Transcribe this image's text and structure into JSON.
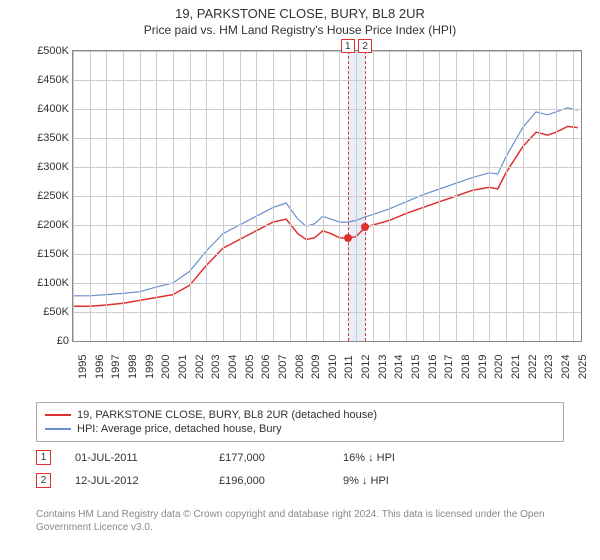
{
  "title": "19, PARKSTONE CLOSE, BURY, BL8 2UR",
  "subtitle": "Price paid vs. HM Land Registry's House Price Index (HPI)",
  "chart": {
    "type": "line",
    "background_color": "#ffffff",
    "grid_color": "#cccccc",
    "border_color": "#888888",
    "y": {
      "min": 0,
      "max": 500000,
      "step": 50000,
      "ticks": [
        "£0",
        "£50K",
        "£100K",
        "£150K",
        "£200K",
        "£250K",
        "£300K",
        "£350K",
        "£400K",
        "£450K",
        "£500K"
      ],
      "label_fontsize": 11
    },
    "x": {
      "min": 1995,
      "max": 2025.5,
      "ticks": [
        1995,
        1996,
        1997,
        1998,
        1999,
        2000,
        2001,
        2002,
        2003,
        2004,
        2005,
        2006,
        2007,
        2008,
        2009,
        2010,
        2011,
        2012,
        2013,
        2014,
        2015,
        2016,
        2017,
        2018,
        2019,
        2020,
        2021,
        2022,
        2023,
        2024,
        2025
      ],
      "label_fontsize": 11,
      "label_rotation": -90
    },
    "series": [
      {
        "name": "19, PARKSTONE CLOSE, BURY, BL8 2UR (detached house)",
        "color": "#e03030",
        "line_width": 1.5,
        "points": [
          [
            1995,
            60000
          ],
          [
            1996,
            60000
          ],
          [
            1997,
            62000
          ],
          [
            1998,
            65000
          ],
          [
            1999,
            70000
          ],
          [
            2000,
            75000
          ],
          [
            2001,
            80000
          ],
          [
            2002,
            96000
          ],
          [
            2003,
            130000
          ],
          [
            2004,
            160000
          ],
          [
            2005,
            175000
          ],
          [
            2006,
            190000
          ],
          [
            2007,
            205000
          ],
          [
            2007.8,
            210000
          ],
          [
            2008.5,
            185000
          ],
          [
            2009,
            175000
          ],
          [
            2009.5,
            178000
          ],
          [
            2010,
            190000
          ],
          [
            2010.5,
            185000
          ],
          [
            2011,
            178000
          ],
          [
            2011.5,
            177000
          ],
          [
            2012,
            180000
          ],
          [
            2012.54,
            196000
          ],
          [
            2013,
            200000
          ],
          [
            2014,
            208000
          ],
          [
            2015,
            220000
          ],
          [
            2016,
            230000
          ],
          [
            2017,
            240000
          ],
          [
            2018,
            250000
          ],
          [
            2019,
            260000
          ],
          [
            2020,
            265000
          ],
          [
            2020.5,
            262000
          ],
          [
            2021,
            290000
          ],
          [
            2022,
            335000
          ],
          [
            2022.8,
            360000
          ],
          [
            2023.5,
            355000
          ],
          [
            2024,
            360000
          ],
          [
            2024.7,
            370000
          ],
          [
            2025.3,
            368000
          ]
        ]
      },
      {
        "name": "HPI: Average price, detached house, Bury",
        "color": "#6a8fd0",
        "line_width": 1.2,
        "points": [
          [
            1995,
            78000
          ],
          [
            1996,
            78000
          ],
          [
            1997,
            80000
          ],
          [
            1998,
            82000
          ],
          [
            1999,
            85000
          ],
          [
            2000,
            93000
          ],
          [
            2001,
            100000
          ],
          [
            2002,
            120000
          ],
          [
            2003,
            155000
          ],
          [
            2004,
            185000
          ],
          [
            2005,
            200000
          ],
          [
            2006,
            215000
          ],
          [
            2007,
            230000
          ],
          [
            2007.8,
            238000
          ],
          [
            2008.5,
            210000
          ],
          [
            2009,
            198000
          ],
          [
            2009.5,
            202000
          ],
          [
            2010,
            215000
          ],
          [
            2010.5,
            210000
          ],
          [
            2011,
            205000
          ],
          [
            2011.5,
            205000
          ],
          [
            2012,
            208000
          ],
          [
            2012.54,
            214000
          ],
          [
            2013,
            218000
          ],
          [
            2014,
            228000
          ],
          [
            2015,
            240000
          ],
          [
            2016,
            252000
          ],
          [
            2017,
            262000
          ],
          [
            2018,
            272000
          ],
          [
            2019,
            282000
          ],
          [
            2020,
            290000
          ],
          [
            2020.5,
            288000
          ],
          [
            2021,
            318000
          ],
          [
            2022,
            368000
          ],
          [
            2022.8,
            395000
          ],
          [
            2023.5,
            390000
          ],
          [
            2024,
            395000
          ],
          [
            2024.7,
            402000
          ],
          [
            2025.3,
            398000
          ]
        ]
      }
    ],
    "marker_band": {
      "from": 2011.5,
      "to": 2012.54,
      "color": "#e8eef7"
    },
    "markers": [
      {
        "label": "1",
        "x": 2011.5,
        "y": 177000
      },
      {
        "label": "2",
        "x": 2012.54,
        "y": 196000
      }
    ]
  },
  "legend": {
    "items": [
      {
        "label": "19, PARKSTONE CLOSE, BURY, BL8 2UR (detached house)",
        "color": "#e03030"
      },
      {
        "label": "HPI: Average price, detached house, Bury",
        "color": "#6a8fd0"
      }
    ]
  },
  "sales": [
    {
      "badge": "1",
      "date": "01-JUL-2011",
      "price": "£177,000",
      "delta": "16% ↓ HPI"
    },
    {
      "badge": "2",
      "date": "12-JUL-2012",
      "price": "£196,000",
      "delta": "9% ↓ HPI"
    }
  ],
  "attribution": "Contains HM Land Registry data © Crown copyright and database right 2024. This data is licensed under the Open Government Licence v3.0."
}
